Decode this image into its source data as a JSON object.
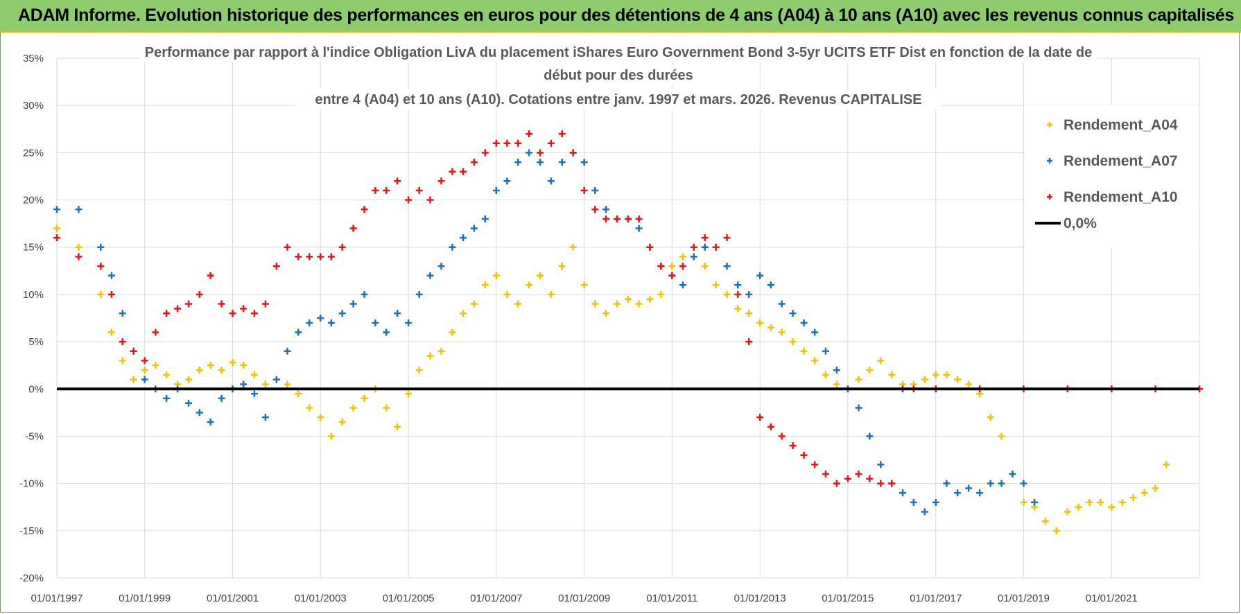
{
  "banner": {
    "title": "ADAM Informe. Evolution historique des performances en euros pour des détentions de 4 ans (A04) à 10 ans (A10) avec les revenus connus capitalisés"
  },
  "colors": {
    "banner_bg": "#8fcc6e",
    "banner_border": "#e6b800",
    "A04": "#f5c000",
    "A07": "#1a6fc0",
    "A10": "#ee1111",
    "zero_line": "#000000",
    "grid": "#d9d9d9"
  },
  "chart_data": {
    "type": "scatter",
    "title_lines": [
      "Performance par rapport à l'indice Obligation LivA  du placement iShares Euro Government Bond 3-5yr UCITS ETF Dist en fonction de la date de",
      "début pour des durées",
      "entre 4 (A04) et 10 ans (A10). Cotations entre janv. 1997 et mars. 2026. Revenus CAPITALISE"
    ],
    "y_ticks": [
      "35%",
      "30%",
      "25%",
      "20%",
      "15%",
      "10%",
      "5%",
      "0%",
      "-5%",
      "-10%",
      "-15%",
      "-20%"
    ],
    "ylim": [
      -20,
      35
    ],
    "x_ticks": [
      "01/01/1997",
      "01/01/1999",
      "01/01/2001",
      "01/01/2003",
      "01/01/2005",
      "01/01/2007",
      "01/01/2009",
      "01/01/2011",
      "01/01/2013",
      "01/01/2015",
      "01/01/2017",
      "01/01/2019",
      "01/01/2021"
    ],
    "xlim": [
      "1997-01-01",
      "2023-01-01"
    ],
    "grid": true,
    "legend_position": "right",
    "legend": [
      "Rendement_A04",
      "Rendement_A07",
      "Rendement_A10",
      "0,0%"
    ],
    "series": [
      {
        "name": "Rendement_A04",
        "x": [
          "1997-01-01",
          "1997-07-01",
          "1998-01-01",
          "1998-04-01",
          "1998-07-01",
          "1998-10-01",
          "1999-01-01",
          "1999-04-01",
          "1999-07-01",
          "1999-10-01",
          "2000-01-01",
          "2000-04-01",
          "2000-07-01",
          "2000-10-01",
          "2001-01-01",
          "2001-04-01",
          "2001-07-01",
          "2001-10-01",
          "2002-01-01",
          "2002-04-01",
          "2002-07-01",
          "2002-10-01",
          "2003-01-01",
          "2003-04-01",
          "2003-07-01",
          "2003-10-01",
          "2004-01-01",
          "2004-04-01",
          "2004-07-01",
          "2004-10-01",
          "2005-01-01",
          "2005-04-01",
          "2005-07-01",
          "2005-10-01",
          "2006-01-01",
          "2006-04-01",
          "2006-07-01",
          "2006-10-01",
          "2007-01-01",
          "2007-04-01",
          "2007-07-01",
          "2007-10-01",
          "2008-01-01",
          "2008-04-01",
          "2008-07-01",
          "2008-10-01",
          "2009-01-01",
          "2009-04-01",
          "2009-07-01",
          "2009-10-01",
          "2010-01-01",
          "2010-04-01",
          "2010-07-01",
          "2010-10-01",
          "2011-01-01",
          "2011-04-01",
          "2011-07-01",
          "2011-10-01",
          "2012-01-01",
          "2012-04-01",
          "2012-07-01",
          "2012-10-01",
          "2013-01-01",
          "2013-04-01",
          "2013-07-01",
          "2013-10-01",
          "2014-01-01",
          "2014-04-01",
          "2014-07-01",
          "2014-10-01",
          "2015-01-01",
          "2015-04-01",
          "2015-07-01",
          "2015-10-01",
          "2016-01-01",
          "2016-04-01",
          "2016-07-01",
          "2016-10-01",
          "2017-01-01",
          "2017-04-01",
          "2017-07-01",
          "2017-10-01",
          "2018-01-01",
          "2018-04-01",
          "2018-07-01",
          "2018-10-01",
          "2019-01-01",
          "2019-04-01",
          "2019-07-01",
          "2019-10-01",
          "2020-01-01",
          "2020-04-01",
          "2020-07-01",
          "2020-10-01",
          "2021-01-01",
          "2021-04-01",
          "2021-07-01",
          "2021-10-01",
          "2022-01-01",
          "2022-04-01"
        ],
        "y": [
          17,
          15,
          10,
          6,
          3,
          1,
          2,
          2.5,
          1.5,
          0.5,
          1,
          2,
          2.5,
          2,
          2.8,
          2.5,
          1.5,
          0.5,
          1,
          0.5,
          -0.5,
          -2,
          -3,
          -5,
          -3.5,
          -2,
          -1,
          0,
          -2,
          -4,
          -0.5,
          2,
          3.5,
          4,
          6,
          8,
          9,
          11,
          12,
          10,
          9,
          11,
          12,
          10,
          13,
          15,
          11,
          9,
          8,
          9,
          9.5,
          9,
          9.5,
          10,
          13,
          14,
          15,
          13,
          11,
          10,
          8.5,
          8,
          7,
          6.5,
          6,
          5,
          4,
          3,
          1.5,
          0.5,
          0,
          1,
          2,
          3,
          1.5,
          0.5,
          0.5,
          1,
          1.5,
          1.5,
          1,
          0.5,
          -0.5,
          -3,
          -5,
          -9,
          -12,
          -12.5,
          -14,
          -15,
          -13,
          -12.5,
          -12,
          -12,
          -12.5,
          -12,
          -11.5,
          -11,
          -10.5,
          -8
        ]
      },
      {
        "name": "Rendement_A07",
        "x": [
          "1997-01-01",
          "1997-07-01",
          "1998-01-01",
          "1998-04-01",
          "1998-07-01",
          "1998-10-01",
          "1999-01-01",
          "1999-04-01",
          "1999-07-01",
          "1999-10-01",
          "2000-01-01",
          "2000-04-01",
          "2000-07-01",
          "2000-10-01",
          "2001-01-01",
          "2001-04-01",
          "2001-07-01",
          "2001-10-01",
          "2002-01-01",
          "2002-04-01",
          "2002-07-01",
          "2002-10-01",
          "2003-01-01",
          "2003-04-01",
          "2003-07-01",
          "2003-10-01",
          "2004-01-01",
          "2004-04-01",
          "2004-07-01",
          "2004-10-01",
          "2005-01-01",
          "2005-04-01",
          "2005-07-01",
          "2005-10-01",
          "2006-01-01",
          "2006-04-01",
          "2006-07-01",
          "2006-10-01",
          "2007-01-01",
          "2007-04-01",
          "2007-07-01",
          "2007-10-01",
          "2008-01-01",
          "2008-04-01",
          "2008-07-01",
          "2008-10-01",
          "2009-01-01",
          "2009-04-01",
          "2009-07-01",
          "2009-10-01",
          "2010-01-01",
          "2010-04-01",
          "2010-07-01",
          "2010-10-01",
          "2011-01-01",
          "2011-04-01",
          "2011-07-01",
          "2011-10-01",
          "2012-01-01",
          "2012-04-01",
          "2012-07-01",
          "2012-10-01",
          "2013-01-01",
          "2013-04-01",
          "2013-07-01",
          "2013-10-01",
          "2014-01-01",
          "2014-04-01",
          "2014-07-01",
          "2014-10-01",
          "2015-01-01",
          "2015-04-01",
          "2015-07-01",
          "2015-10-01",
          "2016-01-01",
          "2016-04-01",
          "2016-07-01",
          "2016-10-01",
          "2017-01-01",
          "2017-04-01",
          "2017-07-01",
          "2017-10-01",
          "2018-01-01",
          "2018-04-01",
          "2018-07-01",
          "2018-10-01",
          "2019-01-01",
          "2019-04-01"
        ],
        "y": [
          19,
          19,
          15,
          12,
          8,
          4,
          1,
          0,
          -1,
          0,
          -1.5,
          -2.5,
          -3.5,
          -1,
          0,
          0.5,
          -0.5,
          -3,
          1,
          4,
          6,
          7,
          7.5,
          7,
          8,
          9,
          10,
          7,
          6,
          8,
          7,
          10,
          12,
          13,
          15,
          16,
          17,
          18,
          21,
          22,
          24,
          25,
          24,
          22,
          24,
          25,
          24,
          21,
          19,
          18,
          18,
          17,
          15,
          13,
          12,
          11,
          14,
          15,
          15,
          13,
          11,
          10,
          12,
          11,
          9,
          8,
          7,
          6,
          4,
          2,
          0,
          -2,
          -5,
          -8,
          -10,
          -11,
          -12,
          -13,
          -12,
          -10,
          -11,
          -10.5,
          -11,
          -10,
          -10,
          -9,
          -10,
          -12
        ]
      },
      {
        "name": "Rendement_A10",
        "x": [
          "1997-01-01",
          "1997-07-01",
          "1998-01-01",
          "1998-04-01",
          "1998-07-01",
          "1998-10-01",
          "1999-01-01",
          "1999-04-01",
          "1999-07-01",
          "1999-10-01",
          "2000-01-01",
          "2000-04-01",
          "2000-07-01",
          "2000-10-01",
          "2001-01-01",
          "2001-04-01",
          "2001-07-01",
          "2001-10-01",
          "2002-01-01",
          "2002-04-01",
          "2002-07-01",
          "2002-10-01",
          "2003-01-01",
          "2003-04-01",
          "2003-07-01",
          "2003-10-01",
          "2004-01-01",
          "2004-04-01",
          "2004-07-01",
          "2004-10-01",
          "2005-01-01",
          "2005-04-01",
          "2005-07-01",
          "2005-10-01",
          "2006-01-01",
          "2006-04-01",
          "2006-07-01",
          "2006-10-01",
          "2007-01-01",
          "2007-04-01",
          "2007-07-01",
          "2007-10-01",
          "2008-01-01",
          "2008-04-01",
          "2008-07-01",
          "2008-10-01",
          "2009-01-01",
          "2009-04-01",
          "2009-07-01",
          "2009-10-01",
          "2010-01-01",
          "2010-04-01",
          "2010-07-01",
          "2010-10-01",
          "2011-01-01",
          "2011-04-01",
          "2011-07-01",
          "2011-10-01",
          "2012-01-01",
          "2012-04-01",
          "2012-07-01",
          "2012-10-01",
          "2013-01-01",
          "2013-04-01",
          "2013-07-01",
          "2013-10-01",
          "2014-01-01",
          "2014-04-01",
          "2014-07-01",
          "2014-10-01",
          "2015-01-01",
          "2015-04-01",
          "2015-07-01",
          "2015-10-01",
          "2016-01-01",
          "2016-04-01",
          "2016-07-01",
          "2017-01-01",
          "2018-01-01",
          "2019-01-01",
          "2020-01-01",
          "2021-01-01",
          "2022-01-01",
          "2023-01-01"
        ],
        "y": [
          16,
          14,
          13,
          10,
          5,
          4,
          3,
          6,
          8,
          8.5,
          9,
          10,
          12,
          9,
          8,
          8.5,
          8,
          9,
          13,
          15,
          14,
          14,
          14,
          14,
          15,
          17,
          19,
          21,
          21,
          22,
          20,
          21,
          20,
          22,
          23,
          23,
          24,
          25,
          26,
          26,
          26,
          27,
          25,
          26,
          27,
          25,
          21,
          19,
          18,
          18,
          18,
          18,
          15,
          13,
          12,
          13,
          15,
          16,
          15,
          16,
          10,
          5,
          -3,
          -4,
          -5,
          -6,
          -7,
          -8,
          -9,
          -10,
          -9.5,
          -9,
          -9.5,
          -10,
          -10,
          0,
          0,
          0,
          0,
          0,
          0,
          0,
          0,
          0
        ]
      },
      {
        "name": "0,0%",
        "x": [
          "1997-01-01",
          "2023-01-01"
        ],
        "y": [
          0,
          0
        ]
      }
    ]
  }
}
